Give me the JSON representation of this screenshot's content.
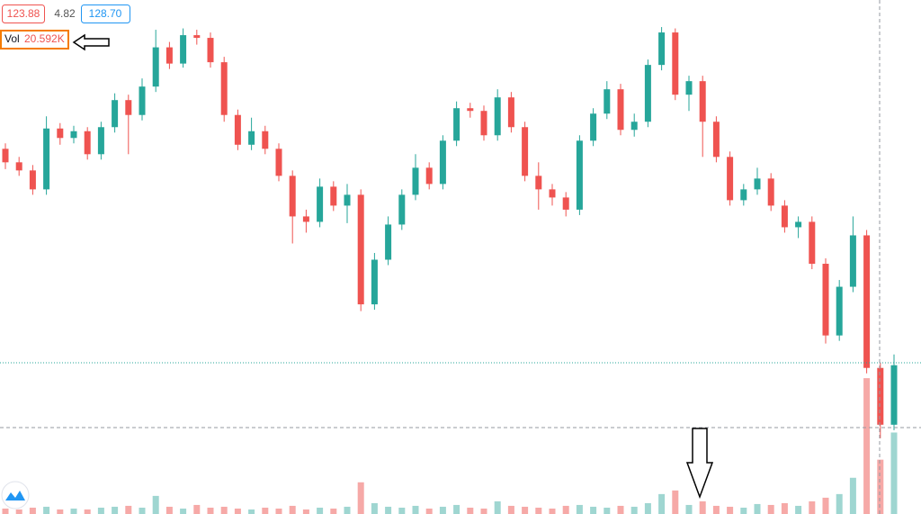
{
  "chart_data": {
    "type": "candlestick",
    "bid": "123.88",
    "spread": "4.82",
    "ask": "128.70",
    "volume_label": "Vol",
    "volume_value": "20.592K",
    "up_color": "#26a69a",
    "down_color": "#ef5350",
    "up_volume_color": "#9fd6d1",
    "down_volume_color": "#f6a9a7",
    "ylim": [
      117,
      155
    ],
    "volume_ylim": [
      0,
      170
    ],
    "open": [
      144.0,
      143.0,
      142.4,
      141.0,
      145.5,
      144.8,
      145.3,
      143.6,
      145.6,
      147.6,
      146.5,
      148.6,
      151.5,
      150.3,
      152.4,
      152.2,
      150.4,
      146.5,
      144.3,
      145.3,
      144.0,
      142.0,
      139.0,
      138.6,
      141.2,
      139.8,
      140.6,
      132.5,
      135.8,
      138.4,
      140.6,
      142.6,
      141.4,
      144.6,
      147.0,
      146.8,
      145.0,
      147.8,
      145.6,
      142.0,
      141.0,
      140.4,
      139.5,
      144.6,
      146.6,
      148.4,
      145.4,
      146.0,
      150.2,
      152.6,
      148.0,
      149.0,
      146.0,
      143.4,
      140.2,
      141.0,
      141.8,
      139.8,
      138.2,
      138.6,
      135.5,
      130.2,
      133.8,
      137.6,
      127.8,
      123.6
    ],
    "high": [
      144.4,
      143.4,
      142.8,
      146.4,
      145.9,
      145.7,
      145.6,
      146.0,
      148.1,
      148.0,
      149.2,
      152.8,
      151.9,
      152.9,
      152.8,
      152.6,
      150.8,
      146.9,
      146.3,
      145.7,
      144.4,
      142.4,
      139.5,
      141.8,
      141.6,
      141.4,
      141.0,
      136.3,
      139.0,
      141.0,
      143.6,
      143.0,
      145.0,
      147.5,
      147.4,
      147.2,
      148.4,
      148.2,
      146.0,
      143.0,
      141.4,
      140.8,
      145.0,
      147.0,
      149.0,
      148.8,
      146.6,
      150.6,
      153.0,
      152.9,
      149.4,
      149.4,
      146.4,
      143.8,
      141.4,
      142.6,
      142.2,
      140.2,
      139.0,
      139.0,
      135.9,
      134.3,
      139.0,
      138.0,
      128.2,
      128.8
    ],
    "low": [
      142.5,
      142.0,
      140.6,
      140.6,
      144.3,
      144.4,
      143.2,
      143.2,
      145.2,
      143.6,
      146.1,
      148.2,
      149.9,
      150.0,
      151.7,
      150.0,
      146.0,
      143.9,
      143.9,
      143.6,
      141.6,
      137.0,
      137.8,
      138.2,
      139.4,
      138.5,
      132.0,
      132.1,
      135.4,
      138.0,
      140.2,
      141.0,
      141.0,
      144.2,
      146.3,
      144.6,
      144.6,
      145.2,
      141.6,
      139.5,
      139.8,
      139.0,
      139.1,
      144.2,
      146.2,
      145.0,
      144.9,
      145.6,
      149.8,
      147.6,
      146.8,
      143.4,
      143.0,
      139.8,
      139.8,
      140.6,
      139.4,
      137.8,
      137.4,
      135.1,
      129.6,
      129.8,
      133.4,
      127.4,
      122.6,
      123.2
    ],
    "close": [
      143.0,
      142.4,
      141.0,
      145.5,
      144.8,
      145.3,
      143.6,
      145.6,
      147.6,
      146.5,
      148.6,
      151.5,
      150.3,
      152.4,
      152.2,
      150.4,
      146.5,
      144.3,
      145.3,
      144.0,
      142.0,
      139.0,
      138.6,
      141.2,
      139.8,
      140.6,
      132.5,
      135.8,
      138.4,
      140.6,
      142.6,
      141.4,
      144.6,
      147.0,
      146.8,
      145.0,
      147.8,
      145.6,
      142.0,
      141.0,
      140.4,
      139.5,
      144.6,
      146.6,
      148.4,
      145.4,
      146.0,
      150.2,
      152.6,
      148.0,
      149.0,
      146.0,
      143.4,
      140.2,
      141.0,
      141.8,
      139.8,
      138.2,
      138.6,
      135.5,
      130.2,
      133.8,
      137.6,
      127.8,
      123.6,
      128.0
    ],
    "volume": [
      6,
      5,
      7,
      8,
      5,
      6,
      5,
      7,
      8,
      9,
      7,
      20,
      8,
      6,
      10,
      7,
      8,
      6,
      5,
      7,
      6,
      9,
      5,
      7,
      6,
      8,
      35,
      12,
      8,
      7,
      9,
      6,
      8,
      10,
      7,
      6,
      14,
      9,
      8,
      7,
      6,
      9,
      10,
      8,
      7,
      9,
      8,
      12,
      22,
      26,
      10,
      14,
      9,
      8,
      7,
      11,
      10,
      12,
      9,
      14,
      18,
      22,
      40,
      150,
      60,
      90
    ]
  }
}
